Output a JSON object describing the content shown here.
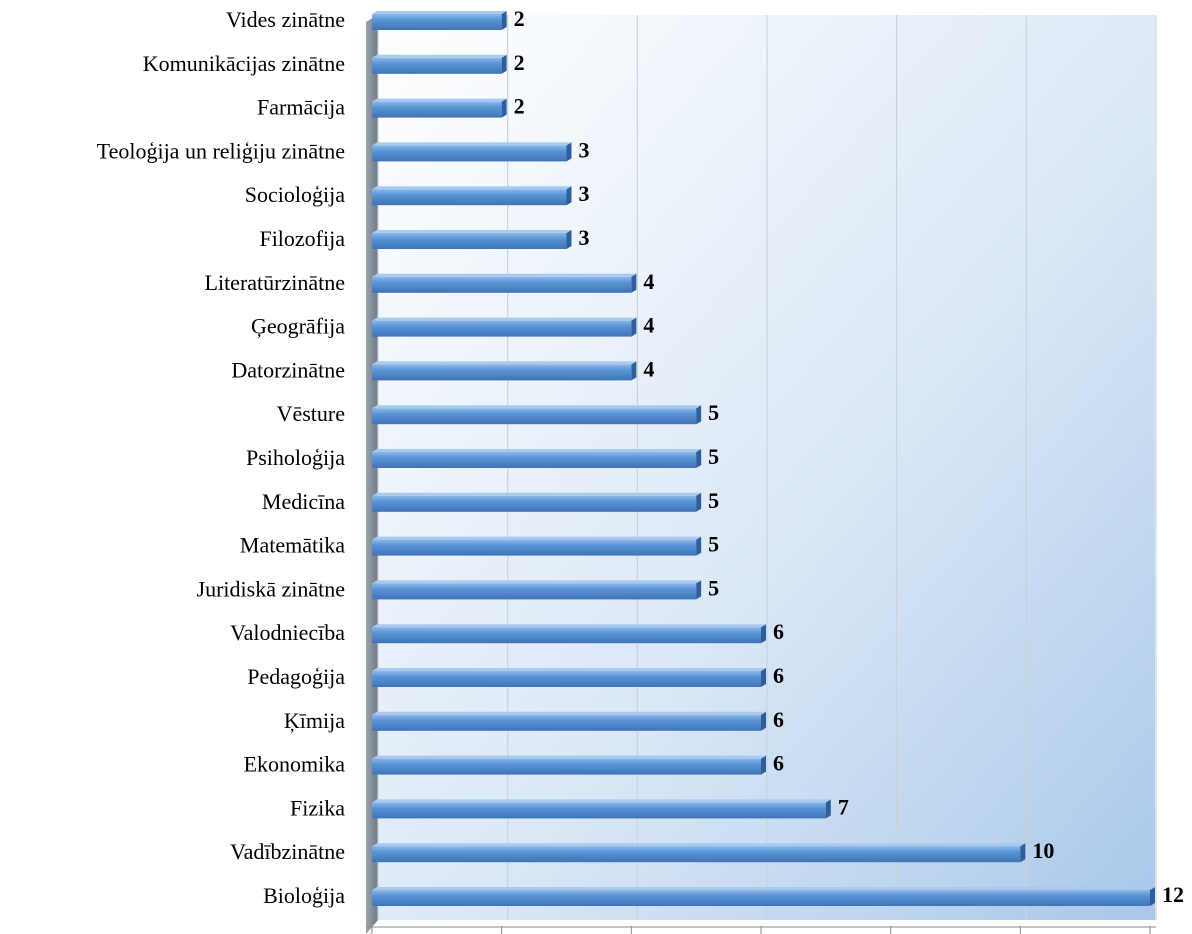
{
  "chart_data": {
    "type": "bar",
    "orientation": "horizontal",
    "categories": [
      "Vides zinātne",
      "Komunikācijas zinātne",
      "Farmācija",
      "Teoloģija un reliģiju zinātne",
      "Socioloģija",
      "Filozofija",
      "Literatūrzinātne",
      "Ģeogrāfija",
      "Datorzinātne",
      "Vēsture",
      "Psiholoģija",
      "Medicīna",
      "Matemātika",
      "Juridiskā zinātne",
      "Valodniecība",
      "Pedagoģija",
      "Ķīmija",
      "Ekonomika",
      "Fizika",
      "Vadībzinātne",
      "Bioloģija"
    ],
    "values": [
      2,
      2,
      2,
      3,
      3,
      3,
      4,
      4,
      4,
      5,
      5,
      5,
      5,
      5,
      6,
      6,
      6,
      6,
      7,
      10,
      12
    ],
    "color": "#5b95d6",
    "xlim": [
      0,
      12
    ],
    "xticks": [
      0,
      2,
      4,
      6,
      8,
      10,
      12
    ],
    "grid": true
  }
}
